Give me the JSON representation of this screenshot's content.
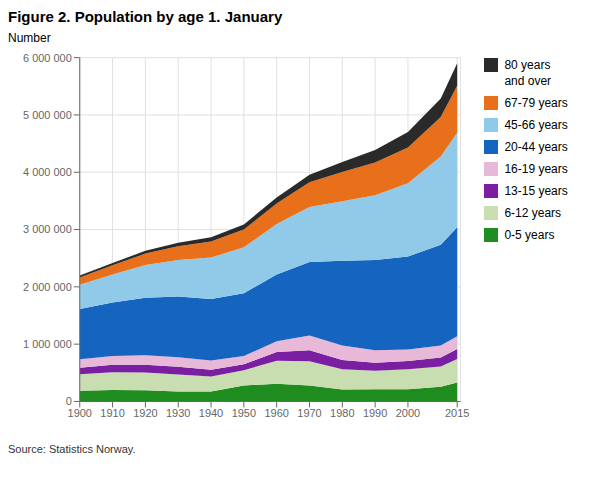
{
  "chart_data": {
    "type": "area",
    "title": "Figure 2. Population by age 1. January",
    "y_label": "Number",
    "source": "Source: Statistics Norway.",
    "stacked": true,
    "grid": true,
    "legend": "right",
    "x": [
      1900,
      1910,
      1920,
      1930,
      1940,
      1950,
      1960,
      1970,
      1980,
      1990,
      2000,
      2010,
      2015
    ],
    "xlim": [
      1900,
      2016
    ],
    "xticks": [
      1900,
      1910,
      1920,
      1930,
      1940,
      1950,
      1960,
      1970,
      1980,
      1990,
      2000,
      2015
    ],
    "ylim": [
      0,
      6000000
    ],
    "yticks": [
      0,
      {
        "value": 1000000,
        "label": "1 000 000"
      },
      {
        "value": 2000000,
        "label": "2 000 000"
      },
      {
        "value": 3000000,
        "label": "3 000 000"
      },
      {
        "value": 4000000,
        "label": "4 000 000"
      },
      {
        "value": 5000000,
        "label": "5 000 000"
      },
      {
        "value": 6000000,
        "label": "6 000 000"
      }
    ],
    "series": [
      {
        "name": "0-5 years",
        "color": "#1e8c1e",
        "values": [
          185000,
          200000,
          195000,
          175000,
          175000,
          280000,
          310000,
          280000,
          210000,
          215000,
          215000,
          255000,
          330000
        ]
      },
      {
        "name": "6-12 years",
        "color": "#c8ddb0",
        "values": [
          290000,
          310000,
          310000,
          295000,
          260000,
          265000,
          400000,
          420000,
          350000,
          320000,
          345000,
          355000,
          410000
        ]
      },
      {
        "name": "13-15 years",
        "color": "#7b1fa2",
        "values": [
          115000,
          130000,
          135000,
          135000,
          120000,
          105000,
          155000,
          195000,
          165000,
          140000,
          145000,
          155000,
          175000
        ]
      },
      {
        "name": "16-19 years",
        "color": "#e8b8d8",
        "values": [
          145000,
          155000,
          165000,
          165000,
          160000,
          145000,
          185000,
          255000,
          250000,
          220000,
          200000,
          210000,
          225000
        ]
      },
      {
        "name": "20-44 years",
        "color": "#1565c0",
        "values": [
          880000,
          930000,
          1005000,
          1060000,
          1075000,
          1095000,
          1165000,
          1285000,
          1480000,
          1575000,
          1625000,
          1760000,
          1900000
        ]
      },
      {
        "name": "45-66 years",
        "color": "#90cae8",
        "values": [
          420000,
          490000,
          570000,
          640000,
          720000,
          800000,
          880000,
          960000,
          1040000,
          1130000,
          1280000,
          1540000,
          1650000
        ]
      },
      {
        "name": "67-79 years",
        "color": "#e8701a",
        "values": [
          130000,
          160000,
          200000,
          240000,
          280000,
          310000,
          360000,
          430000,
          510000,
          570000,
          620000,
          690000,
          820000
        ]
      },
      {
        "name": "80 years\nand over",
        "color": "#2a2a2a",
        "values": [
          35000,
          40000,
          50000,
          60000,
          75000,
          90000,
          105000,
          130000,
          175000,
          220000,
          270000,
          320000,
          390000
        ]
      }
    ]
  }
}
